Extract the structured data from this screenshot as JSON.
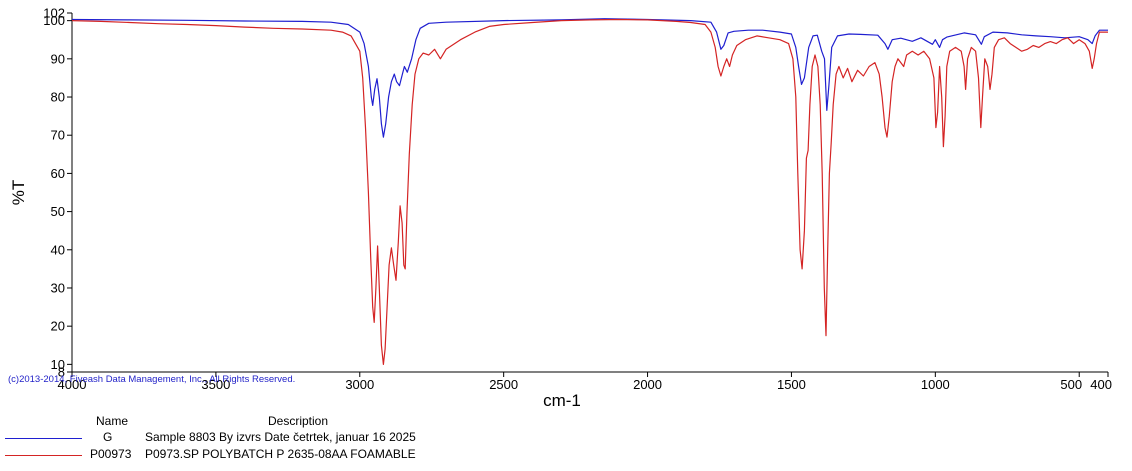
{
  "chart_data": {
    "type": "line",
    "xlabel": "cm-1",
    "ylabel": "%T",
    "xlim": [
      4000,
      400
    ],
    "ylim": [
      8,
      102
    ],
    "x_ticks": [
      "4000",
      "3500",
      "3000",
      "2500",
      "2000",
      "1500",
      "1000",
      "500",
      "400"
    ],
    "x_tick_values": [
      4000,
      3500,
      3000,
      2500,
      2000,
      1500,
      1000,
      500,
      400
    ],
    "y_ticks": [
      "8",
      "10",
      "20",
      "30",
      "40",
      "50",
      "60",
      "70",
      "80",
      "90",
      "100",
      "102"
    ],
    "y_tick_values": [
      8,
      10,
      20,
      30,
      40,
      50,
      60,
      70,
      80,
      90,
      100,
      102
    ],
    "grid": false,
    "copyright": "(c)2013-2014, Fiveash Data Management, Inc., All Rights Reserved.",
    "legend": {
      "name_header": "Name",
      "description_header": "Description"
    },
    "series": [
      {
        "name": "G",
        "description": "Sample 8803 By izvrs Date četrtek, januar 16 2025",
        "color": "#1f1fd0",
        "points": [
          [
            4000,
            100.3
          ],
          [
            3800,
            100.2
          ],
          [
            3600,
            100.1
          ],
          [
            3400,
            99.9
          ],
          [
            3200,
            99.8
          ],
          [
            3100,
            99.6
          ],
          [
            3040,
            99.0
          ],
          [
            3000,
            97.0
          ],
          [
            2985,
            94.0
          ],
          [
            2970,
            88.0
          ],
          [
            2960,
            80.0
          ],
          [
            2955,
            77.8
          ],
          [
            2948,
            82.0
          ],
          [
            2940,
            84.8
          ],
          [
            2932,
            80.0
          ],
          [
            2925,
            73.0
          ],
          [
            2918,
            69.5
          ],
          [
            2910,
            73.0
          ],
          [
            2900,
            80.0
          ],
          [
            2890,
            84.0
          ],
          [
            2880,
            86.0
          ],
          [
            2872,
            84.0
          ],
          [
            2862,
            83.0
          ],
          [
            2852,
            86.0
          ],
          [
            2845,
            88.0
          ],
          [
            2835,
            86.5
          ],
          [
            2820,
            90.0
          ],
          [
            2805,
            95.0
          ],
          [
            2790,
            98.0
          ],
          [
            2760,
            99.3
          ],
          [
            2700,
            99.6
          ],
          [
            2500,
            100.0
          ],
          [
            2300,
            100.2
          ],
          [
            2150,
            100.5
          ],
          [
            2000,
            100.3
          ],
          [
            1850,
            100.0
          ],
          [
            1780,
            99.6
          ],
          [
            1760,
            97.0
          ],
          [
            1745,
            92.5
          ],
          [
            1735,
            93.5
          ],
          [
            1720,
            96.8
          ],
          [
            1700,
            97.2
          ],
          [
            1650,
            97.5
          ],
          [
            1600,
            97.5
          ],
          [
            1540,
            97.0
          ],
          [
            1500,
            96.5
          ],
          [
            1485,
            93.0
          ],
          [
            1475,
            88.0
          ],
          [
            1465,
            83.3
          ],
          [
            1455,
            85.0
          ],
          [
            1440,
            93.0
          ],
          [
            1425,
            96.0
          ],
          [
            1410,
            96.2
          ],
          [
            1395,
            92.0
          ],
          [
            1385,
            90.0
          ],
          [
            1377,
            76.5
          ],
          [
            1370,
            83.0
          ],
          [
            1360,
            93.0
          ],
          [
            1340,
            96.0
          ],
          [
            1300,
            96.5
          ],
          [
            1260,
            96.4
          ],
          [
            1200,
            96.2
          ],
          [
            1175,
            94.0
          ],
          [
            1165,
            92.5
          ],
          [
            1150,
            95.0
          ],
          [
            1120,
            95.4
          ],
          [
            1080,
            94.6
          ],
          [
            1050,
            95.5
          ],
          [
            1010,
            93.8
          ],
          [
            1000,
            95.0
          ],
          [
            985,
            93.0
          ],
          [
            975,
            95.0
          ],
          [
            960,
            95.7
          ],
          [
            900,
            96.8
          ],
          [
            860,
            96.3
          ],
          [
            840,
            93.8
          ],
          [
            830,
            95.8
          ],
          [
            800,
            97.0
          ],
          [
            750,
            96.8
          ],
          [
            700,
            96.3
          ],
          [
            650,
            96.0
          ],
          [
            600,
            95.8
          ],
          [
            550,
            95.5
          ],
          [
            500,
            95.8
          ],
          [
            470,
            95.0
          ],
          [
            455,
            94.0
          ],
          [
            445,
            96.0
          ],
          [
            430,
            97.5
          ],
          [
            400,
            97.5
          ]
        ]
      },
      {
        "name": "P00973",
        "description": "P0973.SP POLYBATCH P 2635-08AA FOAMABLE",
        "color": "#d42424",
        "points": [
          [
            4000,
            100.0
          ],
          [
            3900,
            99.8
          ],
          [
            3800,
            99.5
          ],
          [
            3700,
            99.2
          ],
          [
            3600,
            99.0
          ],
          [
            3500,
            98.7
          ],
          [
            3400,
            98.3
          ],
          [
            3300,
            98.0
          ],
          [
            3200,
            97.8
          ],
          [
            3100,
            97.5
          ],
          [
            3060,
            97.0
          ],
          [
            3030,
            96.0
          ],
          [
            3000,
            92.0
          ],
          [
            2990,
            85.0
          ],
          [
            2980,
            72.0
          ],
          [
            2970,
            55.0
          ],
          [
            2962,
            38.0
          ],
          [
            2955,
            25.0
          ],
          [
            2950,
            21.0
          ],
          [
            2944,
            30.0
          ],
          [
            2938,
            41.0
          ],
          [
            2932,
            30.0
          ],
          [
            2925,
            15.0
          ],
          [
            2918,
            10.0
          ],
          [
            2912,
            14.0
          ],
          [
            2905,
            25.0
          ],
          [
            2898,
            36.0
          ],
          [
            2890,
            40.5
          ],
          [
            2882,
            36.0
          ],
          [
            2874,
            32.0
          ],
          [
            2866,
            42.0
          ],
          [
            2860,
            51.5
          ],
          [
            2853,
            47.0
          ],
          [
            2847,
            36.0
          ],
          [
            2842,
            35.0
          ],
          [
            2836,
            50.0
          ],
          [
            2828,
            65.0
          ],
          [
            2818,
            78.0
          ],
          [
            2808,
            86.0
          ],
          [
            2795,
            90.0
          ],
          [
            2780,
            91.5
          ],
          [
            2760,
            91.0
          ],
          [
            2740,
            92.5
          ],
          [
            2720,
            90.0
          ],
          [
            2700,
            92.5
          ],
          [
            2650,
            95.0
          ],
          [
            2600,
            97.0
          ],
          [
            2550,
            98.5
          ],
          [
            2500,
            99.0
          ],
          [
            2400,
            99.5
          ],
          [
            2300,
            100.0
          ],
          [
            2200,
            100.2
          ],
          [
            2100,
            100.3
          ],
          [
            2000,
            100.2
          ],
          [
            1900,
            99.8
          ],
          [
            1850,
            99.5
          ],
          [
            1800,
            99.0
          ],
          [
            1780,
            97.0
          ],
          [
            1765,
            93.0
          ],
          [
            1755,
            88.0
          ],
          [
            1745,
            85.5
          ],
          [
            1735,
            88.0
          ],
          [
            1725,
            90.0
          ],
          [
            1715,
            88.0
          ],
          [
            1705,
            91.0
          ],
          [
            1690,
            93.5
          ],
          [
            1660,
            95.0
          ],
          [
            1620,
            96.0
          ],
          [
            1580,
            95.5
          ],
          [
            1540,
            95.0
          ],
          [
            1510,
            94.0
          ],
          [
            1495,
            90.0
          ],
          [
            1485,
            80.0
          ],
          [
            1478,
            60.0
          ],
          [
            1470,
            40.0
          ],
          [
            1463,
            35.0
          ],
          [
            1455,
            45.0
          ],
          [
            1448,
            64.0
          ],
          [
            1442,
            66.0
          ],
          [
            1436,
            78.0
          ],
          [
            1428,
            88.0
          ],
          [
            1418,
            91.0
          ],
          [
            1408,
            88.0
          ],
          [
            1400,
            78.0
          ],
          [
            1393,
            60.0
          ],
          [
            1386,
            30.0
          ],
          [
            1380,
            17.5
          ],
          [
            1374,
            40.0
          ],
          [
            1368,
            60.0
          ],
          [
            1362,
            68.0
          ],
          [
            1355,
            78.0
          ],
          [
            1345,
            86.0
          ],
          [
            1335,
            88.0
          ],
          [
            1320,
            85.0
          ],
          [
            1305,
            87.5
          ],
          [
            1290,
            84.0
          ],
          [
            1270,
            87.0
          ],
          [
            1250,
            85.5
          ],
          [
            1230,
            88.0
          ],
          [
            1210,
            89.0
          ],
          [
            1195,
            86.0
          ],
          [
            1185,
            80.0
          ],
          [
            1175,
            72.0
          ],
          [
            1168,
            69.5
          ],
          [
            1160,
            75.0
          ],
          [
            1150,
            84.0
          ],
          [
            1140,
            88.0
          ],
          [
            1130,
            90.0
          ],
          [
            1120,
            89.0
          ],
          [
            1110,
            88.0
          ],
          [
            1100,
            91.0
          ],
          [
            1080,
            92.0
          ],
          [
            1060,
            91.0
          ],
          [
            1040,
            92.0
          ],
          [
            1020,
            90.0
          ],
          [
            1005,
            85.0
          ],
          [
            998,
            72.0
          ],
          [
            992,
            76.0
          ],
          [
            985,
            88.0
          ],
          [
            978,
            80.0
          ],
          [
            972,
            67.0
          ],
          [
            966,
            75.0
          ],
          [
            960,
            88.0
          ],
          [
            950,
            92.0
          ],
          [
            930,
            93.0
          ],
          [
            910,
            92.0
          ],
          [
            900,
            88.0
          ],
          [
            895,
            82.0
          ],
          [
            888,
            90.0
          ],
          [
            875,
            93.0
          ],
          [
            860,
            92.0
          ],
          [
            850,
            85.0
          ],
          [
            842,
            72.0
          ],
          [
            836,
            80.0
          ],
          [
            828,
            90.0
          ],
          [
            818,
            88.0
          ],
          [
            810,
            82.0
          ],
          [
            803,
            86.0
          ],
          [
            795,
            93.0
          ],
          [
            780,
            95.0
          ],
          [
            760,
            95.5
          ],
          [
            740,
            94.0
          ],
          [
            720,
            93.0
          ],
          [
            700,
            92.0
          ],
          [
            680,
            92.5
          ],
          [
            660,
            93.5
          ],
          [
            640,
            93.0
          ],
          [
            620,
            94.0
          ],
          [
            600,
            94.5
          ],
          [
            580,
            94.0
          ],
          [
            560,
            95.0
          ],
          [
            540,
            95.5
          ],
          [
            520,
            94.0
          ],
          [
            500,
            95.0
          ],
          [
            480,
            94.0
          ],
          [
            465,
            92.0
          ],
          [
            455,
            87.5
          ],
          [
            448,
            90.0
          ],
          [
            440,
            94.0
          ],
          [
            430,
            97.0
          ],
          [
            400,
            97.0
          ]
        ]
      }
    ]
  }
}
